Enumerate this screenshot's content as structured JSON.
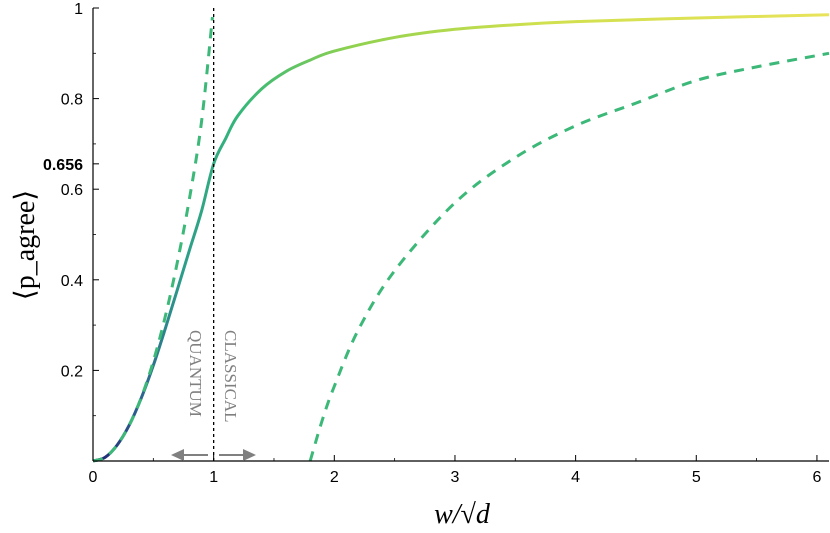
{
  "chart_data": {
    "type": "line",
    "title": "",
    "xlabel": "w/√d",
    "ylabel": "⟨p_agree⟩",
    "xlim": [
      0,
      6.1
    ],
    "ylim": [
      0,
      1
    ],
    "x_ticks": [
      0,
      1,
      2,
      3,
      4,
      5,
      6
    ],
    "y_ticks": [
      0.2,
      0.4,
      0.6,
      0.8,
      1
    ],
    "y_tick_labels": [
      "0.2",
      "0.4",
      "0.6",
      "0.8",
      "1"
    ],
    "highlight": {
      "x": 1,
      "y": 0.656,
      "label": "0.656"
    },
    "series": [
      {
        "style": "solid",
        "color_map": [
          "#1f1f6e",
          "#2c7f8e",
          "#35b779",
          "#8fd14f",
          "#e8e35a"
        ],
        "x": [
          0,
          0.1,
          0.2,
          0.3,
          0.4,
          0.5,
          0.6,
          0.7,
          0.8,
          0.9,
          1.0,
          1.1,
          1.2,
          1.4,
          1.6,
          1.8,
          2.0,
          2.5,
          3.0,
          3.5,
          4.0,
          5.0,
          6.1
        ],
        "y": [
          0,
          0.008,
          0.035,
          0.079,
          0.139,
          0.211,
          0.293,
          0.379,
          0.466,
          0.552,
          0.656,
          0.712,
          0.762,
          0.822,
          0.86,
          0.885,
          0.905,
          0.935,
          0.953,
          0.963,
          0.97,
          0.978,
          0.985
        ]
      },
      {
        "style": "dashed",
        "color": "#3cb878",
        "x": [
          0,
          0.1,
          0.2,
          0.3,
          0.4,
          0.5,
          0.6,
          0.7,
          0.8,
          0.9,
          0.99
        ],
        "y": [
          0,
          0.008,
          0.035,
          0.079,
          0.14,
          0.22,
          0.32,
          0.44,
          0.58,
          0.75,
          0.98
        ]
      },
      {
        "style": "dashed",
        "color": "#3cb878",
        "x": [
          1.8,
          1.9,
          2.0,
          2.2,
          2.5,
          3.0,
          3.5,
          4.0,
          4.5,
          5.0,
          5.5,
          6.1
        ],
        "y": [
          0,
          0.09,
          0.165,
          0.29,
          0.42,
          0.57,
          0.67,
          0.74,
          0.79,
          0.84,
          0.87,
          0.9
        ]
      }
    ],
    "vline": {
      "x": 1,
      "style": "dotted",
      "color": "#000000"
    },
    "annotations": [
      {
        "text": "QUANTUM",
        "direction": "left"
      },
      {
        "text": "CLASSICAL",
        "direction": "right"
      }
    ]
  }
}
